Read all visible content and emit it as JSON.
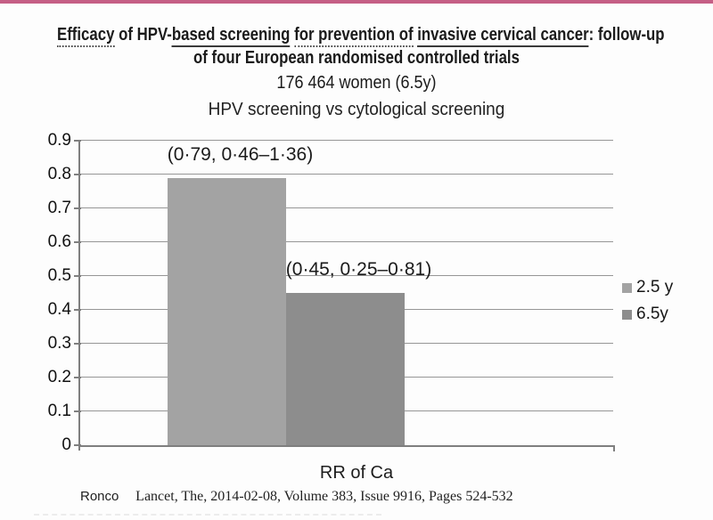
{
  "page": {
    "accent_color": "#c55f85",
    "background_color": "#fdfdfd"
  },
  "header": {
    "title_line1_segments": [
      {
        "text": "Efficacy",
        "underline": "dotted"
      },
      {
        "text": " of HPV-",
        "underline": "none"
      },
      {
        "text": "based screening",
        "underline": "solid"
      },
      {
        "text": " ",
        "underline": "none"
      },
      {
        "text": "for prevention of",
        "underline": "dotted"
      },
      {
        "text": " ",
        "underline": "none"
      },
      {
        "text": "invasive cervical cancer",
        "underline": "solid"
      },
      {
        "text": ": follow-up",
        "underline": "none"
      }
    ],
    "title_line2": "of four European randomised controlled trials",
    "subtitle": "176 464 women  (6.5y)",
    "chart_title": "HPV screening vs cytological screening"
  },
  "chart_data": {
    "type": "bar",
    "title": "HPV screening vs cytological screening",
    "categories": [
      "RR of Ca"
    ],
    "series": [
      {
        "name": "2.5 y",
        "values": [
          0.79
        ],
        "color": "#a3a3a3",
        "annotation": "(0·79, 0·46–1·36)"
      },
      {
        "name": "6.5y",
        "values": [
          0.45
        ],
        "color": "#8d8d8d",
        "annotation": "(0·45, 0·25–0·81)"
      }
    ],
    "xlabel": "RR of Ca",
    "ylabel": "",
    "ylim": [
      0,
      0.9
    ],
    "ytick_step": 0.1,
    "yticks": [
      "0.9",
      "0.8",
      "0.7",
      "0.6",
      "0.5",
      "0.4",
      "0.3",
      "0.2",
      "0.1",
      "0"
    ],
    "grid": true,
    "legend_position": "right"
  },
  "footer": {
    "author": "Ronco",
    "citation": "Lancet, The, 2014-02-08, Volume 383, Issue 9916, Pages 524-532"
  }
}
